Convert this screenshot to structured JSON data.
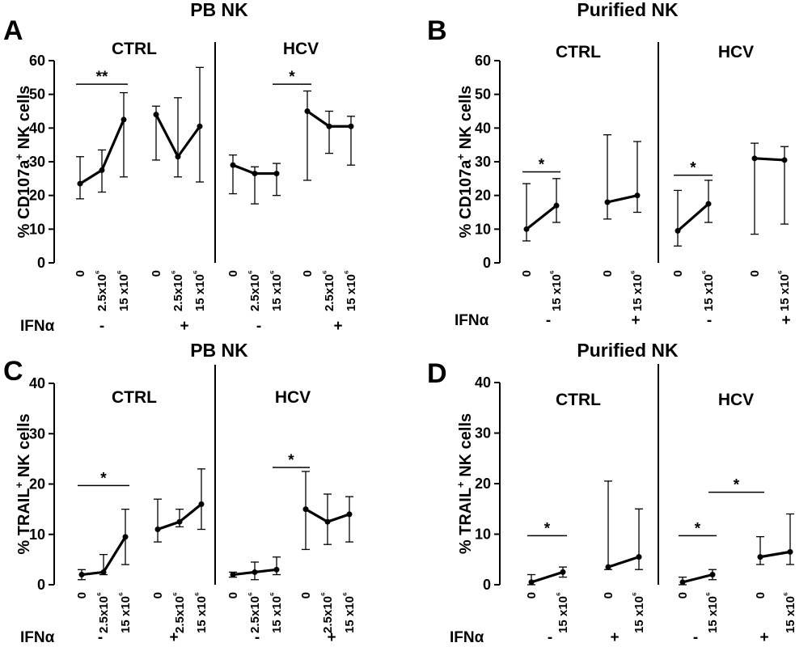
{
  "chart_data": [
    {
      "type": "line",
      "panel": "A",
      "title": "PB NK",
      "ylabel": "% CD107a+ NK cells",
      "ylim": [
        0,
        60
      ],
      "yticks": [
        "0",
        "10",
        "20",
        "30",
        "40",
        "50",
        "60"
      ],
      "ifn_label": "IFNα",
      "groups": [
        {
          "name": "CTRL",
          "subgroups": [
            {
              "ifn": "-",
              "categories": [
                "0",
                "2.5x10⁶",
                "15 x10⁶"
              ],
              "values": [
                23.5,
                27.5,
                42.5
              ],
              "err_low": [
                19,
                21,
                25.5
              ],
              "err_high": [
                31.5,
                33.5,
                50.5
              ]
            },
            {
              "ifn": "+",
              "categories": [
                "0",
                "2.5x10⁶",
                "15 x10⁶"
              ],
              "values": [
                44,
                31.5,
                40.5
              ],
              "err_low": [
                30.5,
                25.5,
                24
              ],
              "err_high": [
                46.5,
                49,
                58
              ]
            }
          ],
          "significance": [
            {
              "label": "**",
              "from": 0,
              "to": 2,
              "y": 53
            }
          ]
        },
        {
          "name": "HCV",
          "subgroups": [
            {
              "ifn": "-",
              "categories": [
                "0",
                "2.5x10⁶",
                "15 x10⁶"
              ],
              "values": [
                29,
                26.5,
                26.5
              ],
              "err_low": [
                20.5,
                17.5,
                20
              ],
              "err_high": [
                32,
                28.5,
                29.5
              ]
            },
            {
              "ifn": "+",
              "categories": [
                "0",
                "2.5x10⁶",
                "15 x10⁶"
              ],
              "values": [
                45,
                40.5,
                40.5
              ],
              "err_low": [
                24.5,
                32.5,
                29
              ],
              "err_high": [
                51,
                45,
                43.5
              ]
            }
          ],
          "significance": [
            {
              "label": "*",
              "from": 2,
              "to": 3,
              "y": 53
            }
          ]
        }
      ]
    },
    {
      "type": "line",
      "panel": "B",
      "title": "Purified NK",
      "ylabel": "% CD107a+ NK cells",
      "ylim": [
        0,
        60
      ],
      "yticks": [
        "0",
        "10",
        "20",
        "30",
        "40",
        "50",
        "60"
      ],
      "ifn_label": "IFNα",
      "groups": [
        {
          "name": "CTRL",
          "subgroups": [
            {
              "ifn": "-",
              "categories": [
                "0",
                "15 x10⁶"
              ],
              "values": [
                10,
                17
              ],
              "err_low": [
                6.5,
                12
              ],
              "err_high": [
                23.5,
                25
              ]
            },
            {
              "ifn": "+",
              "categories": [
                "0",
                "15 x10⁶"
              ],
              "values": [
                18,
                20
              ],
              "err_low": [
                13,
                15
              ],
              "err_high": [
                38,
                36
              ]
            }
          ],
          "significance": [
            {
              "label": "*",
              "from": 0,
              "to": 1,
              "y": 27
            }
          ]
        },
        {
          "name": "HCV",
          "subgroups": [
            {
              "ifn": "-",
              "categories": [
                "0",
                "15 x10⁶"
              ],
              "values": [
                9.5,
                17.5
              ],
              "err_low": [
                5,
                12
              ],
              "err_high": [
                21.5,
                24.5
              ]
            },
            {
              "ifn": "+",
              "categories": [
                "0",
                "15 x10⁶"
              ],
              "values": [
                31,
                30.5
              ],
              "err_low": [
                8.5,
                11.5
              ],
              "err_high": [
                35.5,
                34.5
              ]
            }
          ],
          "significance": [
            {
              "label": "*",
              "from": 0,
              "to": 1,
              "y": 26
            }
          ]
        }
      ]
    },
    {
      "type": "line",
      "panel": "C",
      "title": "PB NK",
      "ylabel": "% TRAIL+ NK cells",
      "ylim": [
        0,
        40
      ],
      "yticks": [
        "0",
        "10",
        "20",
        "30",
        "40"
      ],
      "ifn_label": "IFNα",
      "groups": [
        {
          "name": "CTRL",
          "subgroups": [
            {
              "ifn": "-",
              "categories": [
                "0",
                "2.5x10⁶",
                "15 x10⁶"
              ],
              "values": [
                2,
                2.5,
                9.5
              ],
              "err_low": [
                1,
                2,
                4
              ],
              "err_high": [
                3,
                6,
                15
              ]
            },
            {
              "ifn": "+",
              "categories": [
                "0",
                "2.5x10⁶",
                "15 x10⁶"
              ],
              "values": [
                11,
                12.5,
                16
              ],
              "err_low": [
                8.5,
                11.5,
                11
              ],
              "err_high": [
                17,
                15,
                23
              ]
            }
          ],
          "significance": [
            {
              "label": "*",
              "from": 0,
              "to": 2,
              "y": 19.7
            }
          ]
        },
        {
          "name": "HCV",
          "subgroups": [
            {
              "ifn": "-",
              "categories": [
                "0",
                "2.5x10⁶",
                "15 x10⁶"
              ],
              "values": [
                2,
                2.5,
                3
              ],
              "err_low": [
                1.5,
                1,
                2
              ],
              "err_high": [
                2.5,
                4.5,
                5.5
              ]
            },
            {
              "ifn": "+",
              "categories": [
                "0",
                "2.5x10⁶",
                "15 x10⁶"
              ],
              "values": [
                15,
                12.5,
                14
              ],
              "err_low": [
                7,
                8,
                8.5
              ],
              "err_high": [
                22.5,
                18,
                17.5
              ]
            }
          ],
          "significance": [
            {
              "label": "*",
              "from": 2,
              "to": 3,
              "y": 23.3
            }
          ]
        }
      ]
    },
    {
      "type": "line",
      "panel": "D",
      "title": "Purified NK",
      "ylabel": "% TRAIL+ NK cells",
      "ylim": [
        0,
        40
      ],
      "yticks": [
        "0",
        "10",
        "20",
        "30",
        "40"
      ],
      "ifn_label": "IFNα",
      "groups": [
        {
          "name": "CTRL",
          "subgroups": [
            {
              "ifn": "-",
              "categories": [
                "0",
                "15 x10⁶"
              ],
              "values": [
                0.5,
                2.5
              ],
              "err_low": [
                0,
                1.5
              ],
              "err_high": [
                2,
                3.5
              ]
            },
            {
              "ifn": "+",
              "categories": [
                "0",
                "15 x10⁶"
              ],
              "values": [
                3.5,
                5.5
              ],
              "err_low": [
                3,
                3
              ],
              "err_high": [
                20.5,
                15
              ]
            }
          ],
          "significance": [
            {
              "label": "*",
              "from": 0,
              "to": 1,
              "y": 9.7
            }
          ]
        },
        {
          "name": "HCV",
          "subgroups": [
            {
              "ifn": "-",
              "categories": [
                "0",
                "15 x10⁶"
              ],
              "values": [
                0.5,
                2
              ],
              "err_low": [
                0,
                1
              ],
              "err_high": [
                1.5,
                3
              ]
            },
            {
              "ifn": "+",
              "categories": [
                "0",
                "15 x10⁶"
              ],
              "values": [
                5.5,
                6.5
              ],
              "err_low": [
                4,
                4
              ],
              "err_high": [
                9.5,
                14
              ]
            }
          ],
          "significance": [
            {
              "label": "*",
              "from": 0,
              "to": 1,
              "y": 9.7
            },
            {
              "label": "*",
              "from": 1,
              "to": 2,
              "y": 18.3
            }
          ]
        }
      ]
    }
  ]
}
